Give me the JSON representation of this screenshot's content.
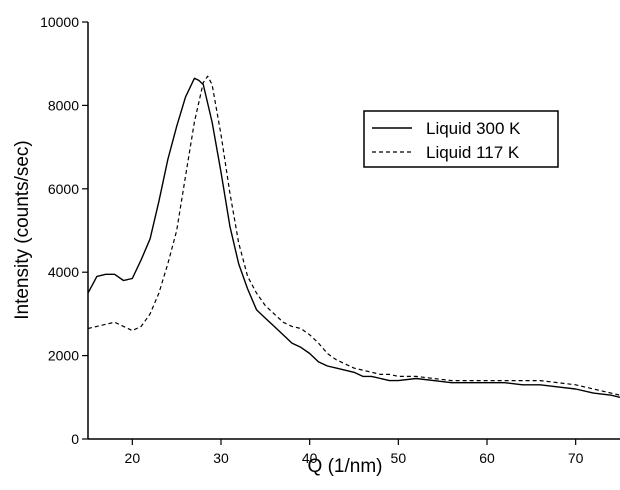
{
  "chart_data": {
    "type": "line",
    "title": "",
    "xlabel": "Q  (1/nm)",
    "ylabel": "Intensity  (counts/sec)",
    "xlim": [
      15,
      75
    ],
    "ylim": [
      0,
      10000
    ],
    "x_ticks": [
      20,
      30,
      40,
      50,
      60,
      70
    ],
    "x_tick_labels": [
      "20",
      "30",
      "40",
      "50",
      "60",
      "70"
    ],
    "y_ticks": [
      0,
      2000,
      4000,
      6000,
      8000,
      10000
    ],
    "y_tick_labels": [
      "0",
      "2000",
      "4000",
      "6000",
      "8000",
      "10000"
    ],
    "grid": false,
    "legend_position": "right",
    "series": [
      {
        "name": "Liquid 300 K",
        "line_style": "solid",
        "color": "#000000",
        "x": [
          15,
          16,
          17,
          18,
          19,
          20,
          21,
          22,
          23,
          24,
          25,
          26,
          27,
          27.5,
          28,
          29,
          30,
          31,
          32,
          33,
          34,
          35,
          36,
          37,
          38,
          39,
          40,
          41,
          42,
          43,
          44,
          45,
          46,
          47,
          48,
          49,
          50,
          52,
          54,
          56,
          58,
          60,
          62,
          64,
          66,
          68,
          70,
          72,
          74,
          75
        ],
        "y": [
          3500,
          3900,
          3950,
          3950,
          3800,
          3850,
          4300,
          4800,
          5700,
          6700,
          7500,
          8200,
          8650,
          8600,
          8500,
          7600,
          6400,
          5100,
          4200,
          3600,
          3100,
          2900,
          2700,
          2500,
          2300,
          2200,
          2050,
          1850,
          1750,
          1700,
          1650,
          1600,
          1500,
          1500,
          1450,
          1400,
          1400,
          1450,
          1400,
          1350,
          1350,
          1350,
          1350,
          1300,
          1300,
          1250,
          1200,
          1100,
          1050,
          1000
        ]
      },
      {
        "name": "Liquid 117 K",
        "line_style": "dashed",
        "color": "#000000",
        "x": [
          15,
          16,
          17,
          18,
          19,
          20,
          21,
          22,
          23,
          24,
          25,
          26,
          27,
          28,
          28.5,
          29,
          30,
          31,
          32,
          33,
          34,
          35,
          36,
          37,
          38,
          39,
          40,
          41,
          42,
          43,
          44,
          45,
          46,
          47,
          48,
          49,
          50,
          52,
          54,
          56,
          58,
          60,
          62,
          64,
          66,
          68,
          70,
          72,
          74,
          75
        ],
        "y": [
          2650,
          2700,
          2750,
          2800,
          2700,
          2600,
          2700,
          3000,
          3500,
          4200,
          5000,
          6300,
          7600,
          8550,
          8700,
          8500,
          7300,
          5900,
          4700,
          3900,
          3500,
          3200,
          3000,
          2800,
          2700,
          2650,
          2500,
          2300,
          2050,
          1900,
          1800,
          1700,
          1650,
          1600,
          1550,
          1550,
          1500,
          1500,
          1450,
          1400,
          1400,
          1400,
          1400,
          1400,
          1400,
          1350,
          1300,
          1200,
          1100,
          1050
        ]
      }
    ]
  }
}
